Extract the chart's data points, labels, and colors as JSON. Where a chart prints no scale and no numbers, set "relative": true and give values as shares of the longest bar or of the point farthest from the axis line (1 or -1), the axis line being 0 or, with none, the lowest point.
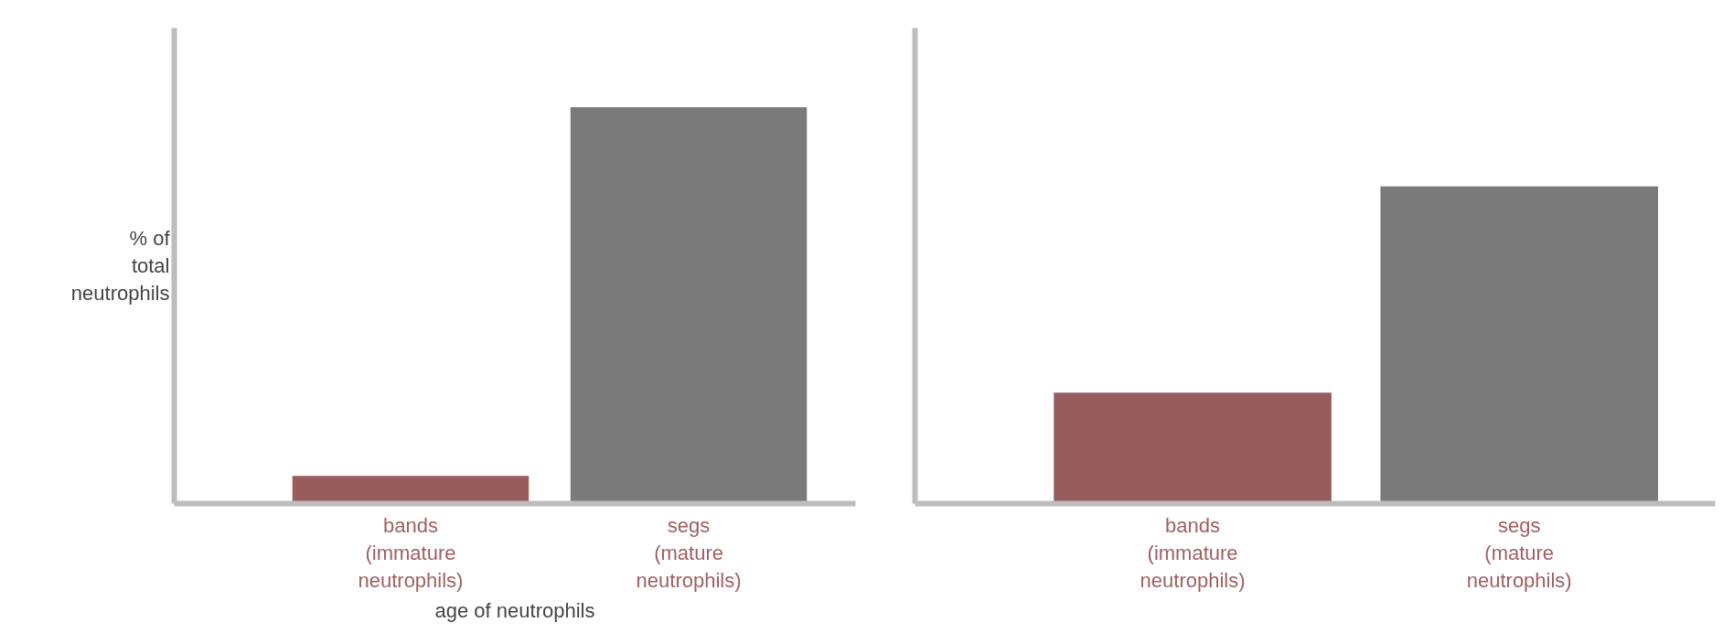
{
  "chart_data": [
    {
      "type": "bar",
      "relative": true,
      "xlabel": "age of neutrophils",
      "ylabel": "% of total neutrophils",
      "categories": [
        "bands (immature neutrophils)",
        "segs (mature neutrophils)"
      ],
      "values": [
        0.07,
        1
      ],
      "colors": [
        "#985c5c",
        "#7a7a7a"
      ],
      "grid": false
    },
    {
      "type": "bar",
      "relative": true,
      "categories": [
        "bands (immature neutrophils)",
        "segs (mature neutrophils)"
      ],
      "values": [
        0.35,
        1
      ],
      "colors": [
        "#985c5c",
        "#7a7a7a"
      ],
      "grid": false
    }
  ]
}
